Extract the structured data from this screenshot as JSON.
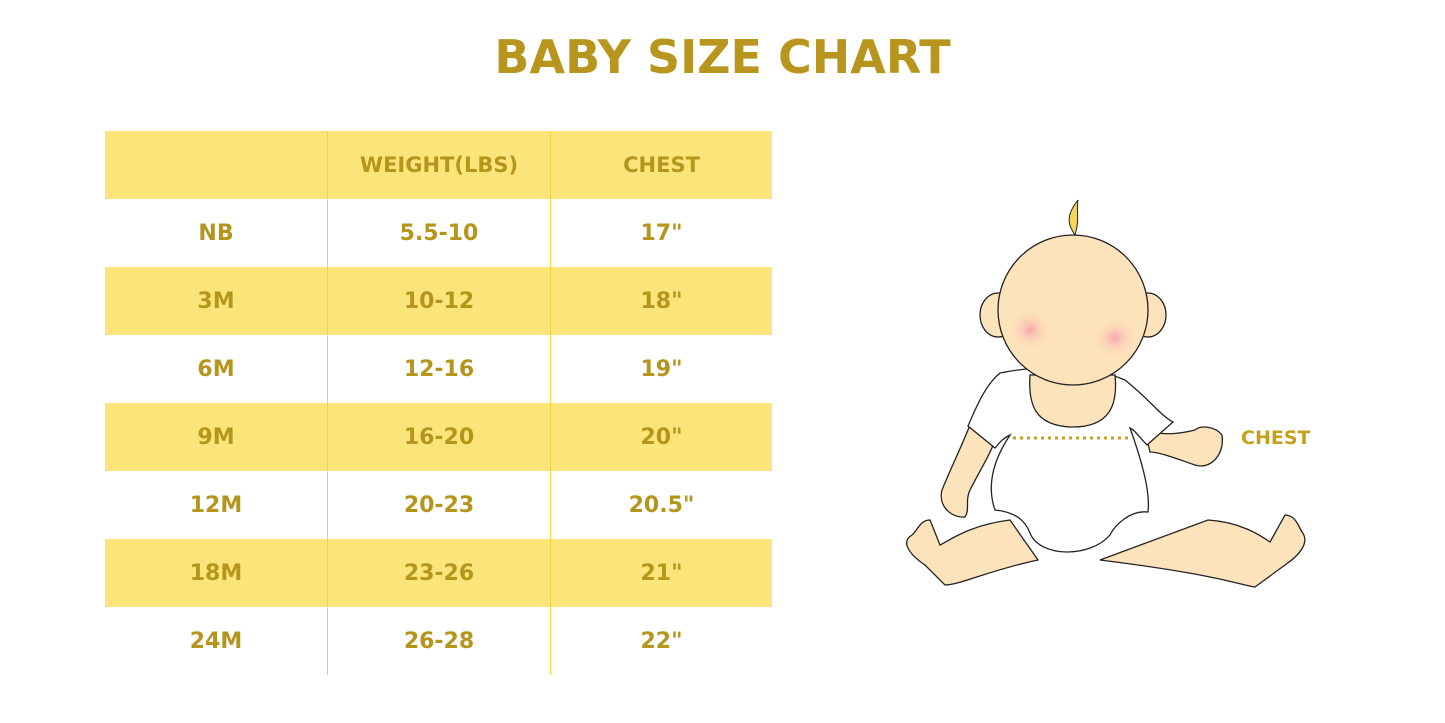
{
  "title": "BABY SIZE CHART",
  "table": {
    "headers": [
      "",
      "WEIGHT(LBS)",
      "CHEST"
    ],
    "rows": [
      [
        "NB",
        "5.5-10",
        "17\""
      ],
      [
        "3M",
        "10-12",
        "18\""
      ],
      [
        "6M",
        "12-16",
        "19\""
      ],
      [
        "9M",
        "16-20",
        "20\""
      ],
      [
        "12M",
        "20-23",
        "20.5\""
      ],
      [
        "18M",
        "23-26",
        "21\""
      ],
      [
        "24M",
        "26-28",
        "22\""
      ]
    ]
  },
  "illustration": {
    "chest_label": "CHEST"
  },
  "colors": {
    "text": "#b5951c",
    "band": "#fbe57b",
    "skin": "#fde3bb"
  }
}
